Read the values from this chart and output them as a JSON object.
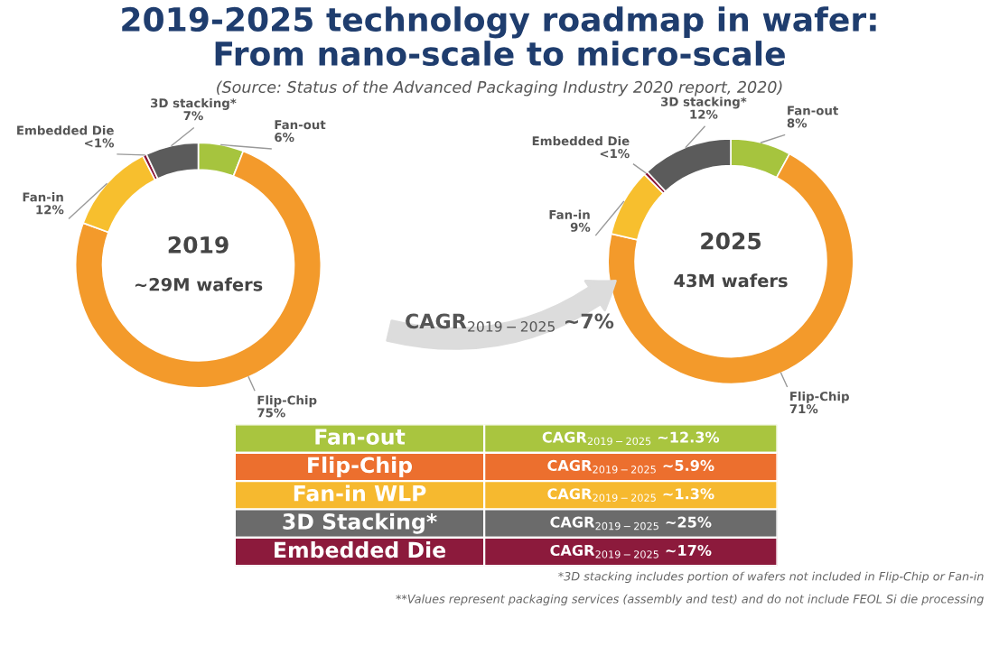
{
  "chart_data": [
    {
      "type": "donut",
      "title": "2019-2025 technology roadmap in wafer:\nFrom nano-scale to micro-scale",
      "subtitle": "(Source: Status of the Advanced Packaging Industry 2020 report, 2020)",
      "categories": [
        "Fan-out",
        "Flip-Chip",
        "Fan-in",
        "Embedded Die",
        "3D stacking*"
      ],
      "values": [
        6,
        75,
        12,
        0.5,
        7
      ],
      "value_labels": [
        "6%",
        "75%",
        "12%",
        "<1%",
        "7%"
      ],
      "colors": [
        "#a6c43e",
        "#f39a2b",
        "#f7bf2e",
        "#8a1538",
        "#5b5b5b"
      ],
      "annotations": [
        "2019",
        "~29M wafers"
      ]
    },
    {
      "type": "donut",
      "categories": [
        "Fan-out",
        "Flip-Chip",
        "Fan-in",
        "Embedded Die",
        "3D stacking*"
      ],
      "values": [
        8,
        71,
        9,
        0.5,
        12
      ],
      "value_labels": [
        "8%",
        "71%",
        "9%",
        "<1%",
        "12%"
      ],
      "colors": [
        "#a6c43e",
        "#f39a2b",
        "#f7bf2e",
        "#8a1538",
        "#5b5b5b"
      ],
      "annotations": [
        "2025",
        "43M wafers"
      ]
    },
    {
      "type": "other",
      "categories": [
        "Fan-out",
        "Flip-Chip",
        "Fan-in WLP",
        "3D Stacking*",
        "Embedded Die"
      ],
      "value_labels": [
        "CAGR$_{2019−2025}$ ~12.3%",
        "CAGR$_{2019−2025}$ ~5.9%",
        "CAGR$_{2019−2025}$ ~1.3%",
        "CAGR$_{2019−2025}$ ~25%",
        "CAGR$_{2019−2025}$ ~17%"
      ],
      "colors": [
        "#a9c53f",
        "#ec6f2e",
        "#f6b92f",
        "#6b6b6b",
        "#8c1a3c"
      ],
      "annotations": [
        "CAGR$_{2019−2025}$ ~7%",
        "*3D stacking includes portion of wafers not included in Flip-Chip or Fan-in",
        "**Values represent packaging services (assembly and test) and do not include FEOL Si die processing"
      ]
    }
  ]
}
